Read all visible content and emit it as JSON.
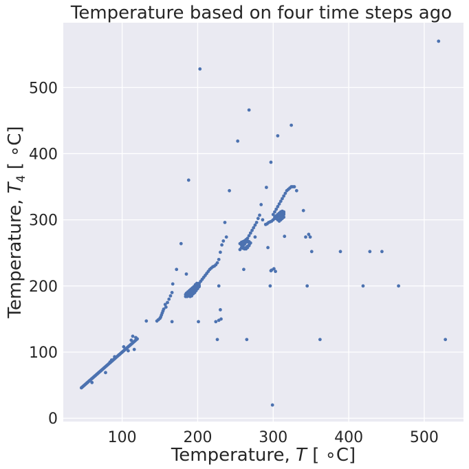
{
  "chart_data": {
    "type": "scatter",
    "title": "Temperature based on four time steps ago",
    "xlabel": {
      "prefix": "Temperature, ",
      "var": "T",
      "sub": "",
      "unit": " [ ∘C]"
    },
    "ylabel": {
      "prefix": "Temperature, ",
      "var": "T",
      "sub": "4",
      "unit": " [ ∘C]"
    },
    "xlim": [
      22,
      552
    ],
    "ylim": [
      -5,
      598
    ],
    "xticks": [
      100,
      200,
      300,
      400,
      500
    ],
    "yticks": [
      0,
      100,
      200,
      300,
      400,
      500
    ],
    "grid": true,
    "colors": {
      "background": "#eaeaf2",
      "grid": "#ffffff",
      "marker": "#4c72b0",
      "text": "#262626"
    },
    "series": [
      {
        "points": [
          [
            46,
            46
          ],
          [
            48,
            48
          ],
          [
            50,
            50
          ],
          [
            52,
            52
          ],
          [
            54,
            54
          ],
          [
            56,
            56
          ],
          [
            58,
            58
          ],
          [
            60,
            60
          ],
          [
            62,
            62
          ],
          [
            64,
            64
          ],
          [
            66,
            66
          ],
          [
            68,
            68
          ],
          [
            70,
            70
          ],
          [
            72,
            72
          ],
          [
            74,
            74
          ],
          [
            76,
            76
          ],
          [
            78,
            78
          ],
          [
            80,
            80
          ],
          [
            82,
            82
          ],
          [
            84,
            84
          ],
          [
            86,
            86
          ],
          [
            88,
            88
          ],
          [
            90,
            90
          ],
          [
            92,
            92
          ],
          [
            94,
            94
          ],
          [
            96,
            96
          ],
          [
            98,
            98
          ],
          [
            100,
            100
          ],
          [
            102,
            102
          ],
          [
            104,
            104
          ],
          [
            106,
            106
          ],
          [
            108,
            108
          ],
          [
            110,
            110
          ],
          [
            112,
            112
          ],
          [
            114,
            114
          ],
          [
            116,
            116
          ],
          [
            118,
            118
          ],
          [
            120,
            120
          ],
          [
            47,
            47
          ],
          [
            49,
            49
          ],
          [
            51,
            51
          ],
          [
            53,
            53
          ],
          [
            55,
            55
          ],
          [
            57,
            57
          ],
          [
            59,
            59
          ],
          [
            61,
            61
          ],
          [
            63,
            63
          ],
          [
            65,
            65
          ],
          [
            67,
            67
          ],
          [
            69,
            69
          ],
          [
            71,
            71
          ],
          [
            73,
            73
          ],
          [
            75,
            75
          ],
          [
            77,
            77
          ],
          [
            79,
            79
          ],
          [
            81,
            81
          ],
          [
            83,
            83
          ],
          [
            85,
            85
          ],
          [
            87,
            87
          ],
          [
            89,
            89
          ],
          [
            91,
            91
          ],
          [
            93,
            93
          ],
          [
            95,
            95
          ],
          [
            97,
            97
          ],
          [
            99,
            99
          ],
          [
            101,
            101
          ],
          [
            103,
            103
          ],
          [
            105,
            105
          ],
          [
            107,
            107
          ],
          [
            109,
            109
          ],
          [
            111,
            111
          ],
          [
            113,
            113
          ],
          [
            115,
            115
          ],
          [
            117,
            117
          ],
          [
            119,
            119
          ],
          [
            60,
            54
          ],
          [
            78,
            69
          ],
          [
            84,
            85
          ],
          [
            86,
            88
          ],
          [
            90,
            93
          ],
          [
            96,
            96
          ],
          [
            102,
            108
          ],
          [
            108,
            102
          ],
          [
            112,
            118
          ],
          [
            114,
            124
          ],
          [
            116,
            104
          ],
          [
            118,
            122
          ],
          [
            132,
            147
          ],
          [
            146,
            147
          ],
          [
            148,
            149
          ],
          [
            150,
            151
          ],
          [
            151,
            153
          ],
          [
            152,
            156
          ],
          [
            153,
            159
          ],
          [
            154,
            162
          ],
          [
            155,
            165
          ],
          [
            157,
            172
          ],
          [
            158,
            168
          ],
          [
            160,
            175
          ],
          [
            162,
            180
          ],
          [
            164,
            185
          ],
          [
            166,
            190
          ],
          [
            167,
            203
          ],
          [
            166,
            146
          ],
          [
            172,
            225
          ],
          [
            178,
            264
          ],
          [
            185,
            218
          ],
          [
            188,
            360
          ],
          [
            184,
            184
          ],
          [
            186,
            184
          ],
          [
            188,
            185
          ],
          [
            190,
            186
          ],
          [
            192,
            188
          ],
          [
            194,
            190
          ],
          [
            196,
            192
          ],
          [
            198,
            195
          ],
          [
            200,
            198
          ],
          [
            202,
            201
          ],
          [
            201,
            203
          ],
          [
            199,
            204
          ],
          [
            197,
            202
          ],
          [
            195,
            199
          ],
          [
            193,
            197
          ],
          [
            191,
            195
          ],
          [
            189,
            193
          ],
          [
            187,
            191
          ],
          [
            185,
            189
          ],
          [
            184,
            187
          ],
          [
            186,
            186
          ],
          [
            188,
            187
          ],
          [
            190,
            188
          ],
          [
            192,
            190
          ],
          [
            194,
            193
          ],
          [
            196,
            196
          ],
          [
            198,
            199
          ],
          [
            200,
            200
          ],
          [
            202,
            199
          ],
          [
            200,
            196
          ],
          [
            198,
            193
          ],
          [
            196,
            190
          ],
          [
            194,
            188
          ],
          [
            192,
            185
          ],
          [
            190,
            184
          ],
          [
            186,
            188
          ],
          [
            188,
            190
          ],
          [
            190,
            192
          ],
          [
            192,
            194
          ],
          [
            194,
            196
          ],
          [
            196,
            198
          ],
          [
            198,
            200
          ],
          [
            200,
            202
          ],
          [
            202,
            204
          ],
          [
            204,
            207
          ],
          [
            206,
            210
          ],
          [
            208,
            213
          ],
          [
            210,
            216
          ],
          [
            212,
            219
          ],
          [
            214,
            222
          ],
          [
            216,
            225
          ],
          [
            218,
            227
          ],
          [
            220,
            229
          ],
          [
            222,
            230
          ],
          [
            224,
            232
          ],
          [
            226,
            235
          ],
          [
            228,
            240
          ],
          [
            230,
            251
          ],
          [
            232,
            262
          ],
          [
            234,
            268
          ],
          [
            236,
            296
          ],
          [
            238,
            274
          ],
          [
            242,
            344
          ],
          [
            201,
            146
          ],
          [
            203,
            528
          ],
          [
            224,
            146
          ],
          [
            226,
            119
          ],
          [
            228,
            200
          ],
          [
            228,
            148
          ],
          [
            230,
            164
          ],
          [
            231,
            150
          ],
          [
            253,
            419
          ],
          [
            256,
            255
          ],
          [
            258,
            258
          ],
          [
            260,
            261
          ],
          [
            262,
            263
          ],
          [
            264,
            266
          ],
          [
            266,
            267
          ],
          [
            268,
            266
          ],
          [
            269,
            264
          ],
          [
            268,
            261
          ],
          [
            266,
            258
          ],
          [
            264,
            256
          ],
          [
            262,
            257
          ],
          [
            260,
            259
          ],
          [
            258,
            262
          ],
          [
            256,
            264
          ],
          [
            258,
            266
          ],
          [
            260,
            267
          ],
          [
            262,
            268
          ],
          [
            264,
            268
          ],
          [
            266,
            268
          ],
          [
            268,
            267
          ],
          [
            270,
            265
          ],
          [
            268,
            262
          ],
          [
            266,
            260
          ],
          [
            264,
            258
          ],
          [
            262,
            256
          ],
          [
            260,
            257
          ],
          [
            260,
            265
          ],
          [
            262,
            268
          ],
          [
            264,
            270
          ],
          [
            266,
            272
          ],
          [
            268,
            276
          ],
          [
            270,
            280
          ],
          [
            272,
            284
          ],
          [
            274,
            288
          ],
          [
            276,
            292
          ],
          [
            278,
            296
          ],
          [
            280,
            302
          ],
          [
            282,
            307
          ],
          [
            284,
            323
          ],
          [
            286,
            300
          ],
          [
            261,
            225
          ],
          [
            265,
            119
          ],
          [
            268,
            466
          ],
          [
            276,
            274
          ],
          [
            290,
            293
          ],
          [
            292,
            294
          ],
          [
            294,
            296
          ],
          [
            296,
            297
          ],
          [
            298,
            298
          ],
          [
            300,
            300
          ],
          [
            302,
            302
          ],
          [
            304,
            303
          ],
          [
            306,
            305
          ],
          [
            308,
            306
          ],
          [
            310,
            308
          ],
          [
            312,
            309
          ],
          [
            314,
            310
          ],
          [
            312,
            306
          ],
          [
            310,
            303
          ],
          [
            308,
            301
          ],
          [
            306,
            300
          ],
          [
            304,
            302
          ],
          [
            302,
            304
          ],
          [
            304,
            306
          ],
          [
            306,
            308
          ],
          [
            308,
            310
          ],
          [
            310,
            312
          ],
          [
            312,
            313
          ],
          [
            314,
            312
          ],
          [
            314,
            308
          ],
          [
            314,
            304
          ],
          [
            312,
            302
          ],
          [
            310,
            300
          ],
          [
            308,
            298
          ],
          [
            300,
            308
          ],
          [
            302,
            312
          ],
          [
            304,
            316
          ],
          [
            306,
            320
          ],
          [
            308,
            324
          ],
          [
            310,
            328
          ],
          [
            312,
            332
          ],
          [
            314,
            336
          ],
          [
            316,
            340
          ],
          [
            318,
            344
          ],
          [
            320,
            346
          ],
          [
            322,
            348
          ],
          [
            324,
            350
          ],
          [
            326,
            350
          ],
          [
            328,
            350
          ],
          [
            331,
            344
          ],
          [
            291,
            349
          ],
          [
            293,
            258
          ],
          [
            296,
            200
          ],
          [
            297,
            223
          ],
          [
            298,
            224
          ],
          [
            297,
            387
          ],
          [
            299,
            20
          ],
          [
            301,
            226
          ],
          [
            303,
            222
          ],
          [
            306,
            427
          ],
          [
            315,
            275
          ],
          [
            324,
            443
          ],
          [
            340,
            314
          ],
          [
            343,
            274
          ],
          [
            345,
            200
          ],
          [
            347,
            278
          ],
          [
            349,
            274
          ],
          [
            351,
            252
          ],
          [
            362,
            119
          ],
          [
            389,
            252
          ],
          [
            419,
            200
          ],
          [
            428,
            252
          ],
          [
            444,
            252
          ],
          [
            466,
            200
          ],
          [
            519,
            570
          ],
          [
            528,
            119
          ]
        ]
      }
    ]
  }
}
